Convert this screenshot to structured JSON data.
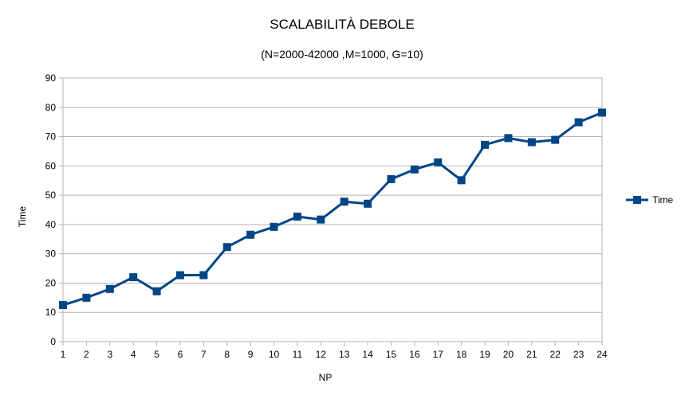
{
  "chart_data": {
    "type": "line",
    "title": "SCALABILITÀ DEBOLE",
    "subtitle": "(N=2000-42000 ,M=1000, G=10)",
    "xlabel": "NP",
    "ylabel": "Time",
    "ylim": [
      0,
      90
    ],
    "yticks": [
      0,
      10,
      20,
      30,
      40,
      50,
      60,
      70,
      80,
      90
    ],
    "grid": true,
    "legend_position": "right",
    "categories": [
      "1",
      "2",
      "3",
      "4",
      "5",
      "6",
      "7",
      "8",
      "9",
      "10",
      "11",
      "12",
      "13",
      "14",
      "15",
      "16",
      "17",
      "18",
      "19",
      "20",
      "21",
      "22",
      "23",
      "24"
    ],
    "series": [
      {
        "name": "Time",
        "color": "#004586",
        "marker": "square",
        "values": [
          12.5,
          15,
          18,
          22,
          17.2,
          22.7,
          22.7,
          32.3,
          36.5,
          39.2,
          42.7,
          41.7,
          47.8,
          47.1,
          55.5,
          58.8,
          61.2,
          55.1,
          67.2,
          69.5,
          68.1,
          68.9,
          74.9,
          78.2
        ]
      }
    ]
  }
}
